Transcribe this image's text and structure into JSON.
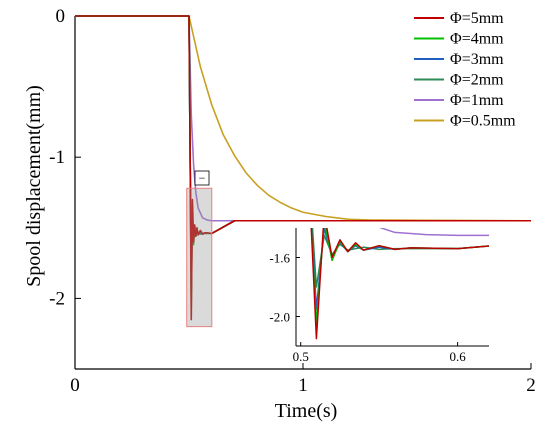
{
  "chart_data": {
    "type": "line",
    "xlabel": "Time(s)",
    "ylabel": "Spool displacement(mm)",
    "xlim": [
      0,
      2
    ],
    "ylim": [
      -2.5,
      0
    ],
    "xticks": [
      "0",
      "1",
      "2"
    ],
    "yticks": [
      "0",
      "-1",
      "-2"
    ],
    "grid": false,
    "legend_position": "top-right",
    "series": [
      {
        "name": "Φ=5mm",
        "color": "#c00000",
        "x": [
          0,
          0.5,
          0.505,
          0.51,
          0.515,
          0.52,
          0.525,
          0.53,
          0.535,
          0.54,
          0.55,
          0.56,
          0.57,
          0.6,
          0.7,
          2.0
        ],
        "y": [
          0,
          0,
          -1.0,
          -2.15,
          -1.3,
          -1.6,
          -1.48,
          -1.56,
          -1.5,
          -1.55,
          -1.52,
          -1.545,
          -1.535,
          -1.54,
          -1.45,
          -1.45
        ]
      },
      {
        "name": "Φ=4mm",
        "color": "#00c000",
        "x": [
          0,
          0.5,
          0.505,
          0.51,
          0.515,
          0.52,
          0.525,
          0.53,
          0.535,
          0.54,
          0.55,
          0.56,
          0.57,
          0.6,
          0.7,
          2.0
        ],
        "y": [
          0,
          0,
          -1.0,
          -2.05,
          -1.35,
          -1.62,
          -1.49,
          -1.56,
          -1.51,
          -1.55,
          -1.52,
          -1.545,
          -1.535,
          -1.54,
          -1.45,
          -1.45
        ]
      },
      {
        "name": "Φ=3mm",
        "color": "#1f5fbf",
        "x": [
          0,
          0.5,
          0.505,
          0.51,
          0.515,
          0.52,
          0.525,
          0.53,
          0.535,
          0.54,
          0.55,
          0.56,
          0.57,
          0.6,
          0.7,
          2.0
        ],
        "y": [
          0,
          0,
          -1.0,
          -1.95,
          -1.4,
          -1.6,
          -1.5,
          -1.56,
          -1.52,
          -1.55,
          -1.53,
          -1.545,
          -1.535,
          -1.54,
          -1.45,
          -1.45
        ]
      },
      {
        "name": "Φ=2mm",
        "color": "#2e8b57",
        "x": [
          0,
          0.5,
          0.505,
          0.51,
          0.515,
          0.52,
          0.525,
          0.53,
          0.54,
          0.55,
          0.56,
          0.6,
          0.7,
          2.0
        ],
        "y": [
          0,
          0,
          -1.0,
          -1.8,
          -1.45,
          -1.58,
          -1.51,
          -1.55,
          -1.53,
          -1.545,
          -1.54,
          -1.54,
          -1.45,
          -1.45
        ]
      },
      {
        "name": "Φ=1mm",
        "color": "#a070d0",
        "x": [
          0,
          0.5,
          0.51,
          0.52,
          0.53,
          0.54,
          0.56,
          0.58,
          0.6,
          0.65,
          0.7,
          2.0
        ],
        "y": [
          0,
          0,
          -0.7,
          -1.05,
          -1.25,
          -1.36,
          -1.43,
          -1.445,
          -1.45,
          -1.45,
          -1.45,
          -1.45
        ]
      },
      {
        "name": "Φ=0.5mm",
        "color": "#c8a020",
        "x": [
          0,
          0.5,
          0.55,
          0.6,
          0.65,
          0.7,
          0.75,
          0.8,
          0.85,
          0.9,
          0.95,
          1.0,
          1.1,
          1.2,
          1.3,
          2.0
        ],
        "y": [
          0,
          0,
          -0.36,
          -0.63,
          -0.84,
          -0.99,
          -1.11,
          -1.2,
          -1.27,
          -1.32,
          -1.36,
          -1.39,
          -1.42,
          -1.44,
          -1.445,
          -1.45
        ]
      }
    ],
    "inset": {
      "xlim": [
        0.497,
        0.62
      ],
      "ylim": [
        -2.2,
        -1.4
      ],
      "xticks": [
        "0.5",
        "0.6"
      ],
      "yticks": [
        "-1.6",
        "-2.0"
      ],
      "zoom_region": {
        "x": [
          0.49,
          0.6
        ],
        "y": [
          -2.2,
          -1.22
        ]
      }
    },
    "annotation": "−"
  }
}
